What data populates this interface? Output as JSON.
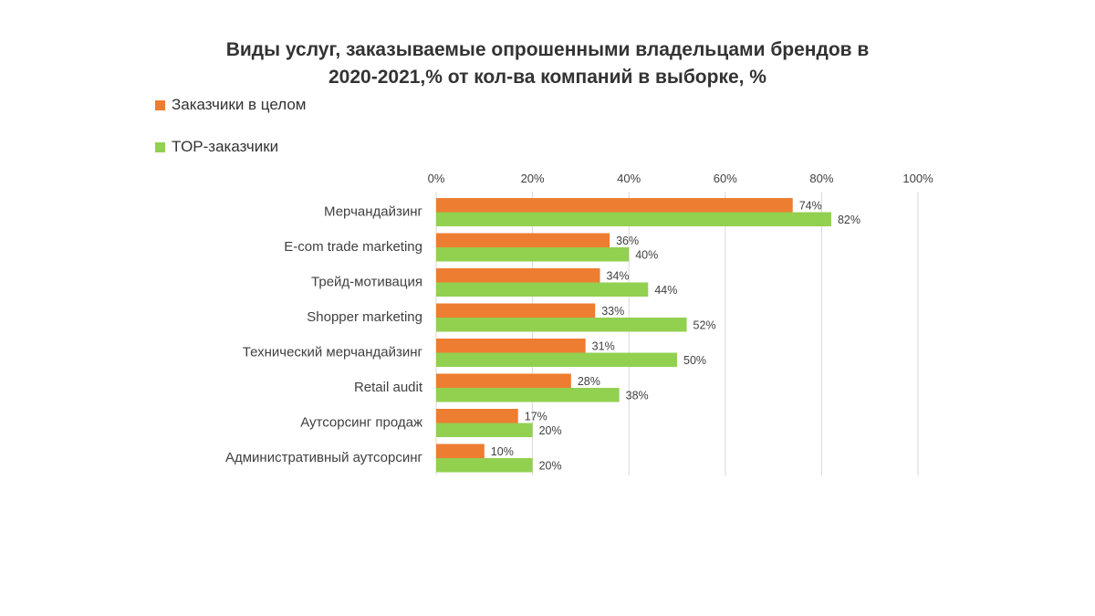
{
  "chart_data": {
    "type": "bar",
    "orientation": "horizontal",
    "title_lines": [
      "Виды услуг, заказываемые опрошенными владельцами брендов в",
      "2020-2021,% от кол-ва компаний в выборке, %"
    ],
    "categories": [
      "Мерчандайзинг",
      "E-com trade marketing",
      "Трейд-мотивация",
      "Shopper marketing",
      "Технический мерчандайзинг",
      "Retail audit",
      "Аутсорсинг продаж",
      "Административный аутсорсинг"
    ],
    "series": [
      {
        "name": "Заказчики в целом",
        "color": "#ED7D31",
        "values": [
          74,
          36,
          34,
          33,
          31,
          28,
          17,
          10
        ]
      },
      {
        "name": "TOP-заказчики",
        "color": "#92D050",
        "values": [
          82,
          40,
          44,
          52,
          50,
          38,
          20,
          20
        ]
      }
    ],
    "xlim": [
      0,
      100
    ],
    "xticks": [
      0,
      20,
      40,
      60,
      80,
      100
    ],
    "xtick_labels": [
      "0%",
      "20%",
      "40%",
      "60%",
      "80%",
      "100%"
    ],
    "x_axis_position": "top",
    "legend_position": "top-left",
    "grid": true,
    "data_label_suffix": "%"
  }
}
